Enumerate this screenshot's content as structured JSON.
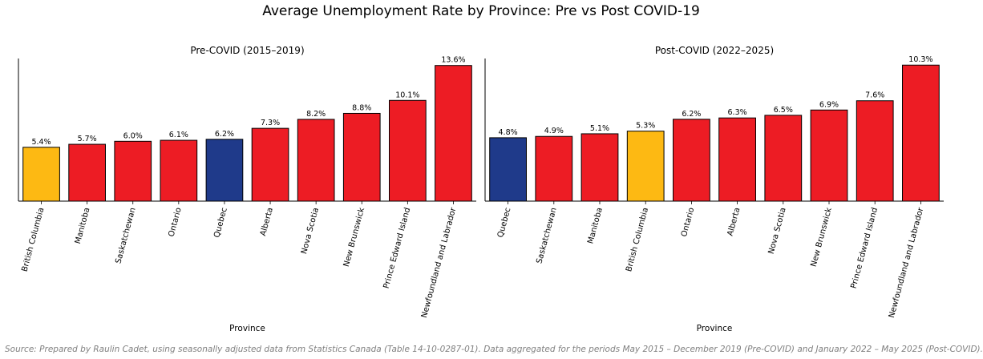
{
  "title": "Average Unemployment Rate by Province: Pre vs Post COVID-19",
  "source": "Source: Prepared by Raulin Cadet, using seasonally adjusted data from Statistics Canada (Table 14-10-0287-01). Data aggregated for the periods May 2015 – December 2019 (Pre-COVID) and January 2022 – May 2025 (Post-COVID).",
  "colors": {
    "default_bar": "#ED1C24",
    "british_columbia": "#FDB913",
    "quebec": "#1F3A8A",
    "bar_edge": "#000000"
  },
  "chart_data": [
    {
      "type": "bar",
      "title": "Pre-COVID (2015–2019)",
      "xlabel": "Province",
      "ylabel": "",
      "ylim": [
        0,
        14.3
      ],
      "grid": false,
      "categories": [
        "British Columbia",
        "Manitoba",
        "Saskatchewan",
        "Ontario",
        "Quebec",
        "Alberta",
        "Nova Scotia",
        "New Brunswick",
        "Prince Edward Island",
        "Newfoundland and Labrador"
      ],
      "values": [
        5.4,
        5.7,
        6.0,
        6.1,
        6.2,
        7.3,
        8.2,
        8.8,
        10.1,
        13.6
      ],
      "labels": [
        "5.4%",
        "5.7%",
        "6.0%",
        "6.1%",
        "6.2%",
        "7.3%",
        "8.2%",
        "8.8%",
        "10.1%",
        "13.6%"
      ],
      "colors": [
        "#FDB913",
        "#ED1C24",
        "#ED1C24",
        "#ED1C24",
        "#1F3A8A",
        "#ED1C24",
        "#ED1C24",
        "#ED1C24",
        "#ED1C24",
        "#ED1C24"
      ]
    },
    {
      "type": "bar",
      "title": "Post-COVID (2022–2025)",
      "xlabel": "Province",
      "ylabel": "",
      "ylim": [
        0,
        10.8
      ],
      "grid": false,
      "categories": [
        "Quebec",
        "Saskatchewan",
        "Manitoba",
        "British Columbia",
        "Ontario",
        "Alberta",
        "Nova Scotia",
        "New Brunswick",
        "Prince Edward Island",
        "Newfoundland and Labrador"
      ],
      "values": [
        4.8,
        4.9,
        5.1,
        5.3,
        6.2,
        6.3,
        6.5,
        6.9,
        7.6,
        10.3
      ],
      "labels": [
        "4.8%",
        "4.9%",
        "5.1%",
        "5.3%",
        "6.2%",
        "6.3%",
        "6.5%",
        "6.9%",
        "7.6%",
        "10.3%"
      ],
      "colors": [
        "#1F3A8A",
        "#ED1C24",
        "#ED1C24",
        "#FDB913",
        "#ED1C24",
        "#ED1C24",
        "#ED1C24",
        "#ED1C24",
        "#ED1C24",
        "#ED1C24"
      ]
    }
  ]
}
